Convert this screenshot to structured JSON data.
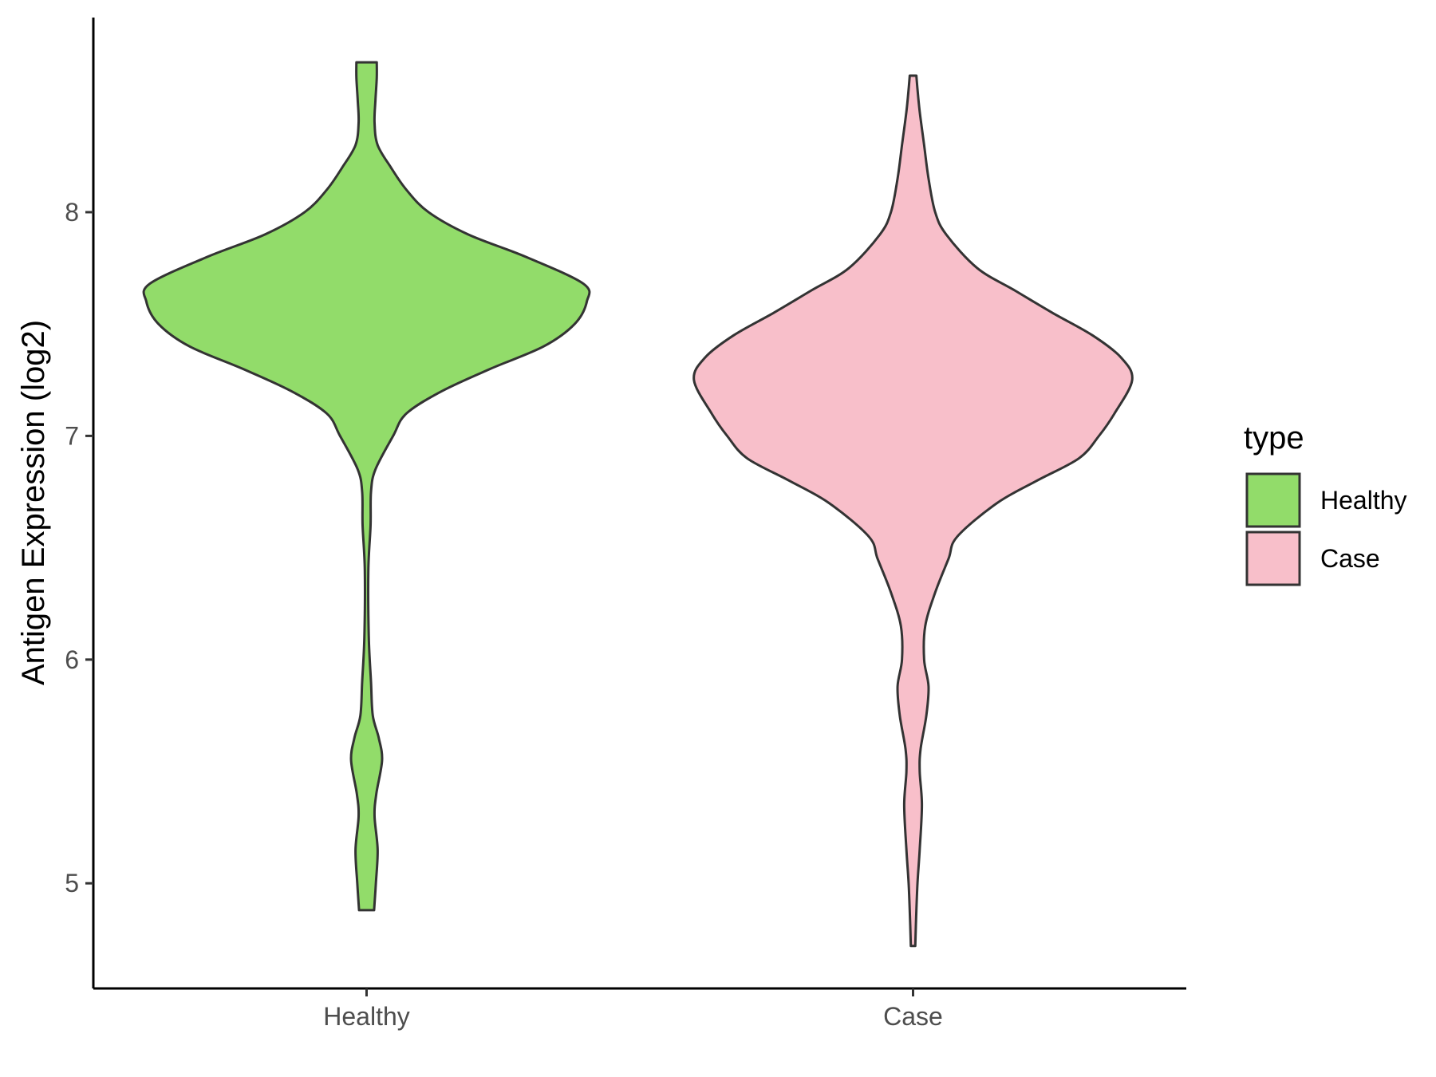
{
  "chart_data": {
    "type": "violin",
    "ylabel": "Antigen Expression (log2)",
    "ylim": [
      4.53,
      8.87
    ],
    "yticks": [
      5,
      6,
      7,
      8
    ],
    "categories": [
      "Healthy",
      "Case"
    ],
    "legend": {
      "title": "type",
      "position": "right",
      "entries": [
        "Healthy",
        "Case"
      ]
    },
    "grid": false,
    "series": [
      {
        "name": "Healthy",
        "color": "#92dc6a",
        "min": 4.88,
        "max": 8.67,
        "density": [
          [
            4.88,
            0.034
          ],
          [
            5.0,
            0.042
          ],
          [
            5.15,
            0.05
          ],
          [
            5.3,
            0.036
          ],
          [
            5.4,
            0.044
          ],
          [
            5.55,
            0.07
          ],
          [
            5.65,
            0.055
          ],
          [
            5.75,
            0.028
          ],
          [
            5.9,
            0.02
          ],
          [
            6.1,
            0.01
          ],
          [
            6.4,
            0.008
          ],
          [
            6.6,
            0.018
          ],
          [
            6.75,
            0.02
          ],
          [
            6.85,
            0.04
          ],
          [
            7.0,
            0.12
          ],
          [
            7.1,
            0.18
          ],
          [
            7.2,
            0.34
          ],
          [
            7.3,
            0.56
          ],
          [
            7.4,
            0.8
          ],
          [
            7.5,
            0.94
          ],
          [
            7.6,
            0.995
          ],
          [
            7.68,
            0.98
          ],
          [
            7.8,
            0.72
          ],
          [
            7.9,
            0.46
          ],
          [
            8.0,
            0.28
          ],
          [
            8.1,
            0.18
          ],
          [
            8.2,
            0.11
          ],
          [
            8.3,
            0.05
          ],
          [
            8.4,
            0.036
          ],
          [
            8.5,
            0.04
          ],
          [
            8.6,
            0.046
          ],
          [
            8.67,
            0.046
          ]
        ]
      },
      {
        "name": "Case",
        "color": "#f8bfca",
        "min": 4.72,
        "max": 8.61,
        "density": [
          [
            4.72,
            0.01
          ],
          [
            4.85,
            0.014
          ],
          [
            5.0,
            0.02
          ],
          [
            5.15,
            0.03
          ],
          [
            5.35,
            0.04
          ],
          [
            5.5,
            0.03
          ],
          [
            5.6,
            0.034
          ],
          [
            5.75,
            0.06
          ],
          [
            5.88,
            0.07
          ],
          [
            6.0,
            0.05
          ],
          [
            6.15,
            0.055
          ],
          [
            6.3,
            0.1
          ],
          [
            6.45,
            0.16
          ],
          [
            6.55,
            0.2
          ],
          [
            6.7,
            0.38
          ],
          [
            6.8,
            0.56
          ],
          [
            6.9,
            0.75
          ],
          [
            7.0,
            0.84
          ],
          [
            7.1,
            0.91
          ],
          [
            7.25,
            0.99
          ],
          [
            7.35,
            0.94
          ],
          [
            7.45,
            0.81
          ],
          [
            7.55,
            0.63
          ],
          [
            7.65,
            0.46
          ],
          [
            7.75,
            0.29
          ],
          [
            7.9,
            0.15
          ],
          [
            8.0,
            0.1
          ],
          [
            8.15,
            0.07
          ],
          [
            8.3,
            0.05
          ],
          [
            8.45,
            0.03
          ],
          [
            8.55,
            0.02
          ],
          [
            8.61,
            0.015
          ]
        ]
      }
    ]
  }
}
